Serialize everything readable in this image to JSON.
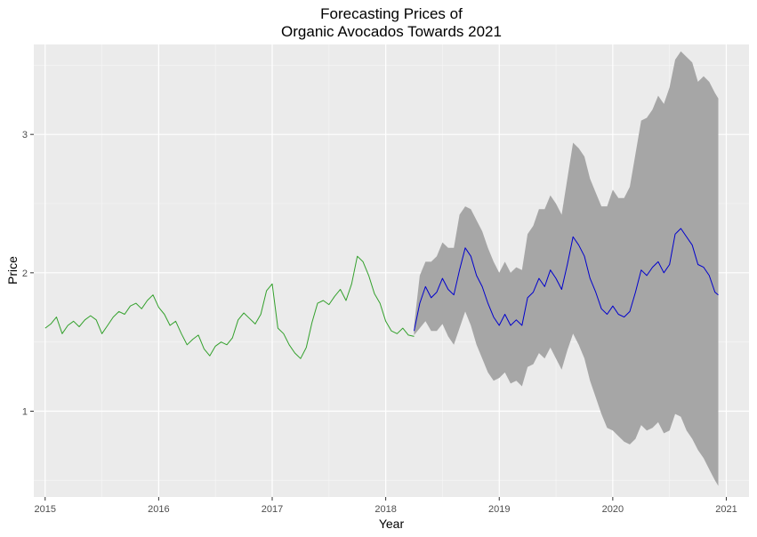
{
  "chart_data": {
    "type": "line",
    "title_line1": "Forecasting Prices of",
    "title_line2": "Organic Avocados Towards 2021",
    "xlabel": "Year",
    "ylabel": "Price",
    "xlim": [
      2014.9,
      2021.2
    ],
    "ylim": [
      0.38,
      3.65
    ],
    "x_ticks": [
      2015,
      2016,
      2017,
      2018,
      2019,
      2020,
      2021
    ],
    "x_tick_labels": [
      "2015",
      "2016",
      "2017",
      "2018",
      "2019",
      "2020",
      "2021"
    ],
    "y_ticks": [
      1,
      2,
      3
    ],
    "y_tick_labels": [
      "1",
      "2",
      "3"
    ],
    "grid": true,
    "colors": {
      "panel_background": "#ebebeb",
      "grid_major": "#ffffff",
      "grid_minor": "#f5f5f5",
      "history_line": "#33a02c",
      "forecast_line": "#0000cd",
      "interval_band": "#a6a6a6"
    },
    "series": [
      {
        "name": "history",
        "x": [
          2015.0,
          2015.05,
          2015.1,
          2015.15,
          2015.2,
          2015.25,
          2015.3,
          2015.35,
          2015.4,
          2015.45,
          2015.5,
          2015.55,
          2015.6,
          2015.65,
          2015.7,
          2015.75,
          2015.8,
          2015.85,
          2015.9,
          2015.95,
          2016.0,
          2016.05,
          2016.1,
          2016.15,
          2016.2,
          2016.25,
          2016.3,
          2016.35,
          2016.4,
          2016.45,
          2016.5,
          2016.55,
          2016.6,
          2016.65,
          2016.7,
          2016.75,
          2016.8,
          2016.85,
          2016.9,
          2016.95,
          2017.0,
          2017.05,
          2017.1,
          2017.15,
          2017.2,
          2017.25,
          2017.3,
          2017.35,
          2017.4,
          2017.45,
          2017.5,
          2017.55,
          2017.6,
          2017.65,
          2017.7,
          2017.75,
          2017.8,
          2017.85,
          2017.9,
          2017.95,
          2018.0,
          2018.05,
          2018.1,
          2018.15,
          2018.2,
          2018.25
        ],
        "values": [
          1.6,
          1.63,
          1.68,
          1.56,
          1.62,
          1.65,
          1.61,
          1.66,
          1.69,
          1.66,
          1.56,
          1.62,
          1.68,
          1.72,
          1.7,
          1.76,
          1.78,
          1.74,
          1.8,
          1.84,
          1.75,
          1.7,
          1.62,
          1.65,
          1.56,
          1.48,
          1.52,
          1.55,
          1.45,
          1.4,
          1.47,
          1.5,
          1.48,
          1.53,
          1.66,
          1.71,
          1.67,
          1.63,
          1.7,
          1.87,
          1.92,
          1.6,
          1.56,
          1.48,
          1.42,
          1.38,
          1.46,
          1.64,
          1.78,
          1.8,
          1.77,
          1.83,
          1.88,
          1.8,
          1.92,
          2.12,
          2.08,
          1.98,
          1.85,
          1.78,
          1.65,
          1.58,
          1.56,
          1.6,
          1.55,
          1.54
        ]
      },
      {
        "name": "forecast",
        "x": [
          2018.25,
          2018.3,
          2018.35,
          2018.4,
          2018.45,
          2018.5,
          2018.55,
          2018.6,
          2018.65,
          2018.7,
          2018.75,
          2018.8,
          2018.85,
          2018.9,
          2018.95,
          2019.0,
          2019.05,
          2019.1,
          2019.15,
          2019.2,
          2019.25,
          2019.3,
          2019.35,
          2019.4,
          2019.45,
          2019.5,
          2019.55,
          2019.6,
          2019.65,
          2019.7,
          2019.75,
          2019.8,
          2019.85,
          2019.9,
          2019.95,
          2020.0,
          2020.05,
          2020.1,
          2020.15,
          2020.2,
          2020.25,
          2020.3,
          2020.35,
          2020.4,
          2020.45,
          2020.5,
          2020.55,
          2020.6,
          2020.65,
          2020.7,
          2020.75,
          2020.8,
          2020.85,
          2020.9,
          2020.93
        ],
        "values": [
          1.58,
          1.78,
          1.9,
          1.82,
          1.86,
          1.96,
          1.88,
          1.84,
          2.02,
          2.18,
          2.12,
          1.98,
          1.9,
          1.78,
          1.68,
          1.62,
          1.7,
          1.62,
          1.66,
          1.62,
          1.82,
          1.86,
          1.96,
          1.9,
          2.02,
          1.96,
          1.88,
          2.06,
          2.26,
          2.2,
          2.12,
          1.96,
          1.86,
          1.74,
          1.7,
          1.76,
          1.7,
          1.68,
          1.72,
          1.86,
          2.02,
          1.98,
          2.04,
          2.08,
          2.0,
          2.06,
          2.28,
          2.32,
          2.26,
          2.2,
          2.06,
          2.04,
          1.98,
          1.86,
          1.84
        ]
      },
      {
        "name": "interval",
        "x": [
          2018.25,
          2018.3,
          2018.35,
          2018.4,
          2018.45,
          2018.5,
          2018.55,
          2018.6,
          2018.65,
          2018.7,
          2018.75,
          2018.8,
          2018.85,
          2018.9,
          2018.95,
          2019.0,
          2019.05,
          2019.1,
          2019.15,
          2019.2,
          2019.25,
          2019.3,
          2019.35,
          2019.4,
          2019.45,
          2019.5,
          2019.55,
          2019.6,
          2019.65,
          2019.7,
          2019.75,
          2019.8,
          2019.85,
          2019.9,
          2019.95,
          2020.0,
          2020.05,
          2020.1,
          2020.15,
          2020.2,
          2020.25,
          2020.3,
          2020.35,
          2020.4,
          2020.45,
          2020.5,
          2020.55,
          2020.6,
          2020.65,
          2020.7,
          2020.75,
          2020.8,
          2020.85,
          2020.9,
          2020.93
        ],
        "lower": [
          1.55,
          1.6,
          1.65,
          1.58,
          1.58,
          1.63,
          1.54,
          1.48,
          1.6,
          1.72,
          1.62,
          1.48,
          1.38,
          1.28,
          1.22,
          1.24,
          1.28,
          1.2,
          1.22,
          1.18,
          1.32,
          1.34,
          1.42,
          1.38,
          1.46,
          1.38,
          1.3,
          1.44,
          1.56,
          1.48,
          1.38,
          1.22,
          1.1,
          0.98,
          0.88,
          0.86,
          0.82,
          0.78,
          0.76,
          0.8,
          0.9,
          0.86,
          0.88,
          0.92,
          0.84,
          0.86,
          0.98,
          0.96,
          0.86,
          0.8,
          0.72,
          0.66,
          0.58,
          0.5,
          0.46
        ],
        "upper": [
          1.62,
          1.98,
          2.08,
          2.08,
          2.12,
          2.22,
          2.18,
          2.18,
          2.42,
          2.48,
          2.46,
          2.38,
          2.3,
          2.18,
          2.08,
          2.0,
          2.08,
          2.0,
          2.04,
          2.02,
          2.28,
          2.34,
          2.46,
          2.46,
          2.56,
          2.5,
          2.42,
          2.68,
          2.94,
          2.9,
          2.84,
          2.68,
          2.58,
          2.48,
          2.48,
          2.6,
          2.54,
          2.54,
          2.62,
          2.86,
          3.1,
          3.12,
          3.18,
          3.28,
          3.22,
          3.34,
          3.54,
          3.6,
          3.56,
          3.52,
          3.38,
          3.42,
          3.38,
          3.3,
          3.26
        ]
      }
    ]
  }
}
